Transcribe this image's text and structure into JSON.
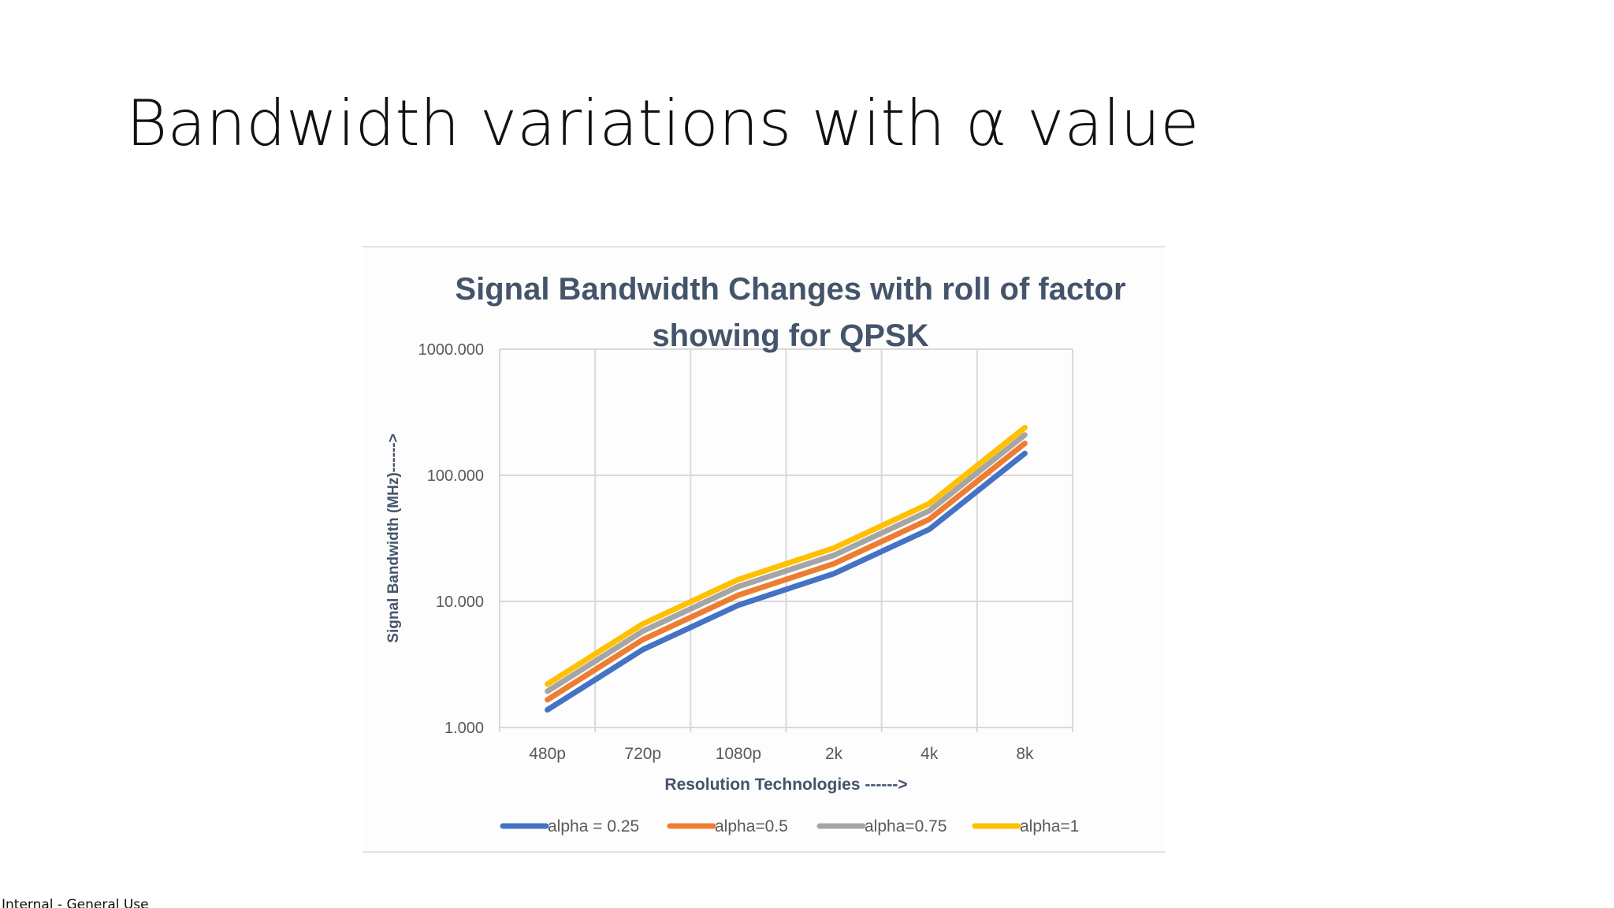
{
  "slide": {
    "title": "Bandwidth variations with α value",
    "footer": "Internal - General Use"
  },
  "colors": {
    "alpha_0_25": "#4472C4",
    "alpha_0_5": "#ED7D31",
    "alpha_0_75": "#A5A5A5",
    "alpha_1": "#FFC000",
    "chart_text": "#44546A",
    "axis_text": "#595959",
    "grid": "#D9D9D9"
  },
  "chart_data": {
    "type": "line",
    "title_lines": [
      "Signal Bandwidth Changes with roll of factor",
      "showing for QPSK"
    ],
    "xlabel": "Resolution Technologies ------>",
    "ylabel": "Signal Bandwidth (MHz)------>",
    "categories": [
      "480p",
      "720p",
      "1080p",
      "2k",
      "4k",
      "8k"
    ],
    "y_scale": "log",
    "ylim": [
      1,
      1000
    ],
    "y_ticks": [
      "1.000",
      "10.000",
      "100.000",
      "1000.000"
    ],
    "grid": true,
    "legend_position": "bottom",
    "series": [
      {
        "name": "alpha = 0.25",
        "color": "#4472C4",
        "values": [
          1.38,
          4.15,
          9.33,
          16.6,
          37.3,
          149.3
        ]
      },
      {
        "name": "alpha=0.5",
        "color": "#ED7D31",
        "values": [
          1.66,
          4.98,
          11.2,
          19.9,
          44.8,
          179.2
        ]
      },
      {
        "name": "alpha=0.75",
        "color": "#A5A5A5",
        "values": [
          1.94,
          5.81,
          13.1,
          23.2,
          52.3,
          209.0
        ]
      },
      {
        "name": "alpha=1",
        "color": "#FFC000",
        "values": [
          2.21,
          6.64,
          14.9,
          26.5,
          59.7,
          238.9
        ]
      }
    ]
  }
}
